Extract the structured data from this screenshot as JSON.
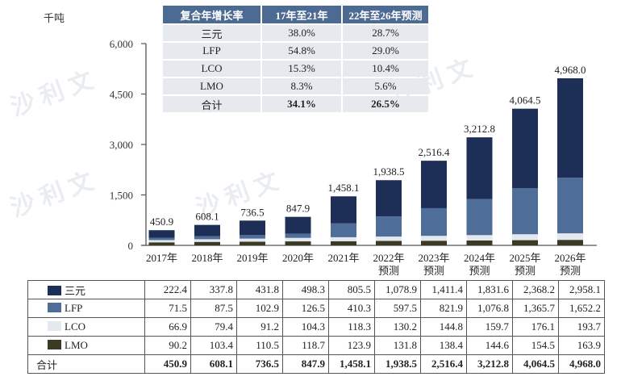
{
  "unit_label": "千吨",
  "watermark_text": "沙利文",
  "cagr_table": {
    "headers": [
      "复合年增长率",
      "17年至21年",
      "22年至26年预测"
    ],
    "rows": [
      {
        "label": "三元",
        "a": "38.0%",
        "b": "28.7%"
      },
      {
        "label": "LFP",
        "a": "54.8%",
        "b": "29.0%"
      },
      {
        "label": "LCO",
        "a": "15.3%",
        "b": "10.4%"
      },
      {
        "label": "LMO",
        "a": "8.3%",
        "b": "5.6%"
      },
      {
        "label": "合计",
        "a": "34.1%",
        "b": "26.5%"
      }
    ]
  },
  "chart_data": {
    "type": "bar",
    "stacked": true,
    "title": "",
    "ylabel": "千吨",
    "xlabel": "",
    "ylim": [
      0,
      6000
    ],
    "yticks": [
      0,
      1500,
      3000,
      4500,
      6000
    ],
    "ytick_labels": [
      "0",
      "1,500",
      "3,000",
      "4,500",
      "6,000"
    ],
    "categories": [
      "2017年",
      "2018年",
      "2019年",
      "2020年",
      "2021年",
      "2022年",
      "2023年",
      "2024年",
      "2025年",
      "2026年"
    ],
    "category_sublabels": [
      "",
      "",
      "",
      "",
      "",
      "预测",
      "预测",
      "预测",
      "预测",
      "预测"
    ],
    "series": [
      {
        "name": "LMO",
        "color": "#3b3a24",
        "values": [
          90.2,
          103.4,
          110.5,
          118.7,
          123.9,
          131.8,
          138.4,
          144.6,
          154.5,
          163.9
        ],
        "labels": [
          "90.2",
          "103.4",
          "110.5",
          "118.7",
          "123.9",
          "131.8",
          "138.4",
          "144.6",
          "154.5",
          "163.9"
        ]
      },
      {
        "name": "LCO",
        "color": "#e4e8ef",
        "values": [
          66.9,
          79.4,
          91.2,
          104.3,
          118.3,
          130.2,
          144.8,
          159.7,
          176.1,
          193.7
        ],
        "labels": [
          "66.9",
          "79.4",
          "91.2",
          "104.3",
          "118.3",
          "130.2",
          "144.8",
          "159.7",
          "176.1",
          "193.7"
        ]
      },
      {
        "name": "LFP",
        "color": "#4e6e99",
        "values": [
          71.5,
          87.5,
          102.9,
          126.5,
          410.3,
          597.5,
          821.9,
          1076.8,
          1365.7,
          1652.2
        ],
        "labels": [
          "71.5",
          "87.5",
          "102.9",
          "126.5",
          "410.3",
          "597.5",
          "821.9",
          "1,076.8",
          "1,365.7",
          "1,652.2"
        ]
      },
      {
        "name": "三元",
        "color": "#1e2f57",
        "values": [
          222.4,
          337.8,
          431.8,
          498.3,
          805.5,
          1078.9,
          1411.4,
          1831.6,
          2368.2,
          2958.1
        ],
        "labels": [
          "222.4",
          "337.8",
          "431.8",
          "498.3",
          "805.5",
          "1,078.9",
          "1,411.4",
          "1,831.6",
          "2,368.2",
          "2,958.1"
        ]
      }
    ],
    "totals": [
      450.9,
      608.1,
      736.5,
      847.9,
      1458.1,
      1938.5,
      2516.4,
      3212.8,
      4064.5,
      4968.0
    ],
    "total_labels": [
      "450.9",
      "608.1",
      "736.5",
      "847.9",
      "1,458.1",
      "1,938.5",
      "2,516.4",
      "3,212.8",
      "4,064.5",
      "4,968.0"
    ],
    "legend_order": [
      "三元",
      "LFP",
      "LCO",
      "LMO"
    ],
    "total_row_label": "合计",
    "legend": "table-below"
  }
}
